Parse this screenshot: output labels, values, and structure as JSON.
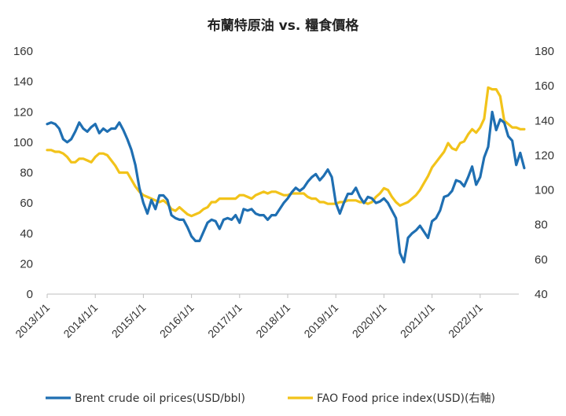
{
  "chart_data": {
    "type": "line",
    "title": "布蘭特原油 vs. 糧食價格",
    "xlabel": "",
    "ylabel": "",
    "ylim": [
      0,
      160
    ],
    "y2lim": [
      40,
      180
    ],
    "yticks": [
      "0",
      "20",
      "40",
      "60",
      "80",
      "100",
      "120",
      "140",
      "160"
    ],
    "y2ticks": [
      "40",
      "60",
      "80",
      "100",
      "120",
      "140",
      "160",
      "180"
    ],
    "xticks": [
      "2013/1/1",
      "2014/1/1",
      "2015/1/1",
      "2016/1/1",
      "2017/1/1",
      "2018/1/1",
      "2019/1/1",
      "2020/1/1",
      "2021/1/1",
      "2022/1/1"
    ],
    "x_start": "2013-01",
    "legend_position": "bottom",
    "grid": false,
    "series": [
      {
        "name": "Brent crude oil prices(USD/bbl)",
        "axis": "left",
        "color": "#1f6fb2",
        "points": [
          [
            "2013-01",
            112
          ],
          [
            "2013-02",
            113
          ],
          [
            "2013-03",
            112
          ],
          [
            "2013-04",
            109
          ],
          [
            "2013-05",
            102
          ],
          [
            "2013-06",
            100
          ],
          [
            "2013-07",
            102
          ],
          [
            "2013-08",
            107
          ],
          [
            "2013-09",
            113
          ],
          [
            "2013-10",
            109
          ],
          [
            "2013-11",
            107
          ],
          [
            "2013-12",
            110
          ],
          [
            "2014-01",
            112
          ],
          [
            "2014-02",
            106
          ],
          [
            "2014-03",
            109
          ],
          [
            "2014-04",
            107
          ],
          [
            "2014-05",
            109
          ],
          [
            "2014-06",
            109
          ],
          [
            "2014-07",
            113
          ],
          [
            "2014-08",
            108
          ],
          [
            "2014-09",
            102
          ],
          [
            "2014-10",
            95
          ],
          [
            "2014-11",
            85
          ],
          [
            "2014-12",
            70
          ],
          [
            "2015-01",
            60
          ],
          [
            "2015-02",
            53
          ],
          [
            "2015-03",
            62
          ],
          [
            "2015-04",
            56
          ],
          [
            "2015-05",
            65
          ],
          [
            "2015-06",
            65
          ],
          [
            "2015-07",
            62
          ],
          [
            "2015-08",
            52
          ],
          [
            "2015-09",
            50
          ],
          [
            "2015-10",
            49
          ],
          [
            "2015-11",
            49
          ],
          [
            "2015-12",
            44
          ],
          [
            "2016-01",
            38
          ],
          [
            "2016-02",
            35
          ],
          [
            "2016-03",
            35
          ],
          [
            "2016-04",
            41
          ],
          [
            "2016-05",
            47
          ],
          [
            "2016-06",
            49
          ],
          [
            "2016-07",
            48
          ],
          [
            "2016-08",
            43
          ],
          [
            "2016-09",
            49
          ],
          [
            "2016-10",
            50
          ],
          [
            "2016-11",
            49
          ],
          [
            "2016-12",
            52
          ],
          [
            "2017-01",
            47
          ],
          [
            "2017-02",
            56
          ],
          [
            "2017-03",
            55
          ],
          [
            "2017-04",
            56
          ],
          [
            "2017-05",
            53
          ],
          [
            "2017-06",
            52
          ],
          [
            "2017-07",
            52
          ],
          [
            "2017-08",
            49
          ],
          [
            "2017-09",
            52
          ],
          [
            "2017-10",
            52
          ],
          [
            "2017-11",
            56
          ],
          [
            "2017-12",
            60
          ],
          [
            "2018-01",
            63
          ],
          [
            "2018-02",
            67
          ],
          [
            "2018-03",
            70
          ],
          [
            "2018-04",
            68
          ],
          [
            "2018-05",
            70
          ],
          [
            "2018-06",
            74
          ],
          [
            "2018-07",
            77
          ],
          [
            "2018-08",
            79
          ],
          [
            "2018-09",
            75
          ],
          [
            "2018-10",
            78
          ],
          [
            "2018-11",
            82
          ],
          [
            "2018-12",
            77
          ],
          [
            "2019-01",
            60
          ],
          [
            "2019-02",
            53
          ],
          [
            "2019-03",
            60
          ],
          [
            "2019-04",
            66
          ],
          [
            "2019-05",
            66
          ],
          [
            "2019-06",
            70
          ],
          [
            "2019-07",
            64
          ],
          [
            "2019-08",
            60
          ],
          [
            "2019-09",
            64
          ],
          [
            "2019-10",
            63
          ],
          [
            "2019-11",
            60
          ],
          [
            "2019-12",
            61
          ],
          [
            "2020-01",
            63
          ],
          [
            "2020-02",
            60
          ],
          [
            "2020-03",
            55
          ],
          [
            "2020-04",
            50
          ],
          [
            "2020-05",
            27
          ],
          [
            "2020-06",
            21
          ],
          [
            "2020-07",
            37
          ],
          [
            "2020-08",
            40
          ],
          [
            "2020-09",
            42
          ],
          [
            "2020-10",
            45
          ],
          [
            "2020-11",
            41
          ],
          [
            "2020-12",
            37
          ],
          [
            "2021-01",
            48
          ],
          [
            "2021-02",
            50
          ],
          [
            "2021-03",
            55
          ],
          [
            "2021-04",
            64
          ],
          [
            "2021-05",
            65
          ],
          [
            "2021-06",
            68
          ],
          [
            "2021-07",
            75
          ],
          [
            "2021-08",
            74
          ],
          [
            "2021-09",
            71
          ],
          [
            "2021-10",
            77
          ],
          [
            "2021-11",
            84
          ],
          [
            "2021-12",
            72
          ],
          [
            "2022-01",
            77
          ],
          [
            "2022-02",
            90
          ],
          [
            "2022-03",
            97
          ],
          [
            "2022-04",
            120
          ],
          [
            "2022-05",
            108
          ],
          [
            "2022-06",
            115
          ],
          [
            "2022-07",
            113
          ],
          [
            "2022-08",
            104
          ],
          [
            "2022-09",
            101
          ],
          [
            "2022-10",
            85
          ],
          [
            "2022-11",
            93
          ],
          [
            "2022-12",
            83
          ]
        ]
      },
      {
        "name": "FAO Food price index(USD)(右軸)",
        "axis": "right",
        "color": "#f2c31a",
        "points": [
          [
            "2013-01",
            123
          ],
          [
            "2013-02",
            123
          ],
          [
            "2013-03",
            122
          ],
          [
            "2013-04",
            122
          ],
          [
            "2013-05",
            121
          ],
          [
            "2013-06",
            119
          ],
          [
            "2013-07",
            116
          ],
          [
            "2013-08",
            116
          ],
          [
            "2013-09",
            118
          ],
          [
            "2013-10",
            118
          ],
          [
            "2013-11",
            117
          ],
          [
            "2013-12",
            116
          ],
          [
            "2014-01",
            119
          ],
          [
            "2014-02",
            121
          ],
          [
            "2014-03",
            121
          ],
          [
            "2014-04",
            120
          ],
          [
            "2014-05",
            117
          ],
          [
            "2014-06",
            114
          ],
          [
            "2014-07",
            110
          ],
          [
            "2014-08",
            110
          ],
          [
            "2014-09",
            110
          ],
          [
            "2014-10",
            106
          ],
          [
            "2014-11",
            102
          ],
          [
            "2014-12",
            99
          ],
          [
            "2015-01",
            97
          ],
          [
            "2015-02",
            96
          ],
          [
            "2015-03",
            95
          ],
          [
            "2015-04",
            94
          ],
          [
            "2015-05",
            93
          ],
          [
            "2015-06",
            94
          ],
          [
            "2015-07",
            92
          ],
          [
            "2015-08",
            89
          ],
          [
            "2015-09",
            88
          ],
          [
            "2015-10",
            90
          ],
          [
            "2015-11",
            88
          ],
          [
            "2015-12",
            86
          ],
          [
            "2016-01",
            85
          ],
          [
            "2016-02",
            86
          ],
          [
            "2016-03",
            87
          ],
          [
            "2016-04",
            89
          ],
          [
            "2016-05",
            90
          ],
          [
            "2016-06",
            93
          ],
          [
            "2016-07",
            93
          ],
          [
            "2016-08",
            95
          ],
          [
            "2016-09",
            95
          ],
          [
            "2016-10",
            95
          ],
          [
            "2016-11",
            95
          ],
          [
            "2016-12",
            95
          ],
          [
            "2017-01",
            97
          ],
          [
            "2017-02",
            97
          ],
          [
            "2017-03",
            96
          ],
          [
            "2017-04",
            95
          ],
          [
            "2017-05",
            97
          ],
          [
            "2017-06",
            98
          ],
          [
            "2017-07",
            99
          ],
          [
            "2017-08",
            98
          ],
          [
            "2017-09",
            99
          ],
          [
            "2017-10",
            99
          ],
          [
            "2017-11",
            98
          ],
          [
            "2017-12",
            97
          ],
          [
            "2018-01",
            97
          ],
          [
            "2018-02",
            98
          ],
          [
            "2018-03",
            98
          ],
          [
            "2018-04",
            98
          ],
          [
            "2018-05",
            98
          ],
          [
            "2018-06",
            96
          ],
          [
            "2018-07",
            95
          ],
          [
            "2018-08",
            95
          ],
          [
            "2018-09",
            93
          ],
          [
            "2018-10",
            93
          ],
          [
            "2018-11",
            92
          ],
          [
            "2018-12",
            92
          ],
          [
            "2019-01",
            92
          ],
          [
            "2019-02",
            93
          ],
          [
            "2019-03",
            93
          ],
          [
            "2019-04",
            94
          ],
          [
            "2019-05",
            94
          ],
          [
            "2019-06",
            94
          ],
          [
            "2019-07",
            93
          ],
          [
            "2019-08",
            93
          ],
          [
            "2019-09",
            92
          ],
          [
            "2019-10",
            93
          ],
          [
            "2019-11",
            96
          ],
          [
            "2019-12",
            98
          ],
          [
            "2020-01",
            101
          ],
          [
            "2020-02",
            100
          ],
          [
            "2020-03",
            96
          ],
          [
            "2020-04",
            93
          ],
          [
            "2020-05",
            91
          ],
          [
            "2020-06",
            92
          ],
          [
            "2020-07",
            93
          ],
          [
            "2020-08",
            95
          ],
          [
            "2020-09",
            97
          ],
          [
            "2020-10",
            100
          ],
          [
            "2020-11",
            104
          ],
          [
            "2020-12",
            108
          ],
          [
            "2021-01",
            113
          ],
          [
            "2021-02",
            116
          ],
          [
            "2021-03",
            119
          ],
          [
            "2021-04",
            122
          ],
          [
            "2021-05",
            127
          ],
          [
            "2021-06",
            124
          ],
          [
            "2021-07",
            123
          ],
          [
            "2021-08",
            127
          ],
          [
            "2021-09",
            128
          ],
          [
            "2021-10",
            132
          ],
          [
            "2021-11",
            135
          ],
          [
            "2021-12",
            133
          ],
          [
            "2022-01",
            136
          ],
          [
            "2022-02",
            141
          ],
          [
            "2022-03",
            159
          ],
          [
            "2022-04",
            158
          ],
          [
            "2022-05",
            158
          ],
          [
            "2022-06",
            154
          ],
          [
            "2022-07",
            140
          ],
          [
            "2022-08",
            138
          ],
          [
            "2022-09",
            136
          ],
          [
            "2022-10",
            136
          ],
          [
            "2022-11",
            135
          ],
          [
            "2022-12",
            135
          ]
        ]
      }
    ]
  }
}
